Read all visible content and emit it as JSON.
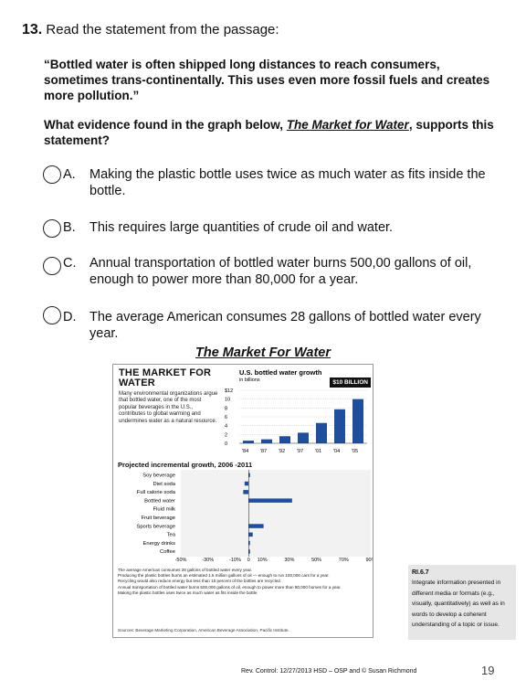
{
  "question": {
    "number": "13.",
    "title": "Read the statement from the passage:",
    "quote": "“Bottled water is often shipped long distances to reach consumers, sometimes trans-continentally. This uses even more fossil fuels and creates more pollution.”",
    "prompt_before": "What evidence found in the graph below,",
    "prompt_link": "The Market for Water",
    "prompt_after": ", supports this statement?"
  },
  "options": [
    {
      "letter": "A.",
      "text": "Making the plastic bottle uses twice as much water as fits inside the bottle."
    },
    {
      "letter": "B.",
      "text": "This requires large quantities of crude oil and water."
    },
    {
      "letter": "C.",
      "text": "Annual transportation of bottled water burns 500,00 gallons of oil, enough to power more than 80,000 for a year."
    },
    {
      "letter": "D.",
      "text": "The average American consumes 28 gallons of bottled water every year."
    }
  ],
  "graph_title": "The Market  For Water",
  "figure": {
    "head": "THE MARKET FOR WATER",
    "intro": "Many environmental organizations argue that bottled water, one of the most popular beverages in the U.S., contributes to global warming and undermines water as a natural resource.",
    "bar_title": "U.S. bottled water growth",
    "bar_unit": "in billions",
    "badge": "$10 BILLION",
    "sub_head": "Projected incremental growth, 2006 -2011",
    "notes": [
      "The average American consumes 28 gallons of bottled water every year.",
      "Producing the plastic bottles burns an estimated 1.5 million gallons of oil — enough to run 100,000 cars for a year.",
      "Recycling would also reduce energy but less than 15 percent of the bottles are recycled.",
      "Annual transportation of bottled water burns 500,000 gallons of oil, enough to power more than 80,000 homes for a year.",
      "Making the plastic bottles uses twice as much water as fits inside the bottle."
    ],
    "source": "Sources: Beverage Marketing Corporation, American Beverage Association, Pacific Institute."
  },
  "chart_data": [
    {
      "type": "bar",
      "title": "U.S. bottled water growth",
      "ylabel": "in billions",
      "categories": [
        "'84",
        "'87",
        "'92",
        "'97",
        "'01",
        "'04",
        "'05"
      ],
      "y_ticks": [
        "$12",
        "10",
        "8",
        "6",
        "4",
        "2",
        "0"
      ],
      "ylim": [
        0,
        12
      ],
      "values": [
        0.6,
        0.9,
        1.6,
        2.4,
        4.6,
        7.7,
        10.0
      ]
    },
    {
      "type": "bar",
      "orientation": "horizontal",
      "title": "Projected incremental growth, 2006 -2011",
      "categories": [
        "Soy beverage",
        "Diet soda",
        "Full calorie soda",
        "Bottled water",
        "Fluid milk",
        "Fruit beverage",
        "Sports beverage",
        "Tea",
        "Energy drinks",
        "Coffee"
      ],
      "values": [
        1,
        -3,
        -4,
        32,
        0,
        0,
        11,
        3,
        1,
        1
      ],
      "x_ticks": [
        "-50%",
        "-30%",
        "-10%",
        "0",
        "10%",
        "30%",
        "50%",
        "70%",
        "90%"
      ],
      "xlim": [
        -50,
        90
      ]
    }
  ],
  "ri_box": {
    "code": "RI.6.7",
    "text": "Integrate information presented in different media or formats (e.g., visually, quantitatively) as well as in words to develop a coherent understanding of a topic or issue."
  },
  "footer": "Rev. Control:   12/27/2013 HSD – OSP and © Susan Richmond",
  "page_number": "19"
}
